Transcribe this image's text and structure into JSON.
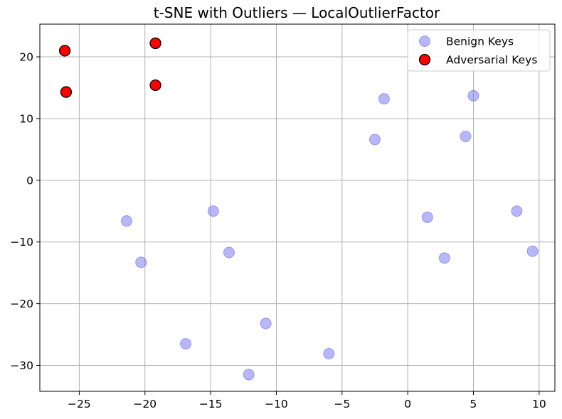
{
  "chart_data": {
    "type": "scatter",
    "title": "t-SNE with Outliers — LocalOutlierFactor",
    "xlabel": "",
    "ylabel": "",
    "xlim": [
      -28,
      11.2
    ],
    "ylim": [
      -34.2,
      25.3
    ],
    "xticks": [
      -25,
      -20,
      -15,
      -10,
      -5,
      0,
      5,
      10
    ],
    "yticks": [
      -30,
      -20,
      -10,
      0,
      10,
      20
    ],
    "grid": true,
    "legend_position": "top-right",
    "series": [
      {
        "name": "Benign Keys",
        "color": "#7b7bf5",
        "points": [
          [
            -1.8,
            13.2
          ],
          [
            5.0,
            13.7
          ],
          [
            -2.5,
            6.6
          ],
          [
            4.4,
            7.1
          ],
          [
            -21.4,
            -6.6
          ],
          [
            -14.8,
            -5.0
          ],
          [
            1.5,
            -6.0
          ],
          [
            8.3,
            -5.0
          ],
          [
            -20.3,
            -13.3
          ],
          [
            -13.6,
            -11.7
          ],
          [
            2.8,
            -12.6
          ],
          [
            9.5,
            -11.5
          ],
          [
            -16.9,
            -26.5
          ],
          [
            -10.8,
            -23.2
          ],
          [
            -12.1,
            -31.5
          ],
          [
            -6.0,
            -28.1
          ]
        ]
      },
      {
        "name": "Adversarial Keys",
        "color": "#ff0000",
        "points": [
          [
            -26.1,
            21.0
          ],
          [
            -19.2,
            22.2
          ],
          [
            -26.0,
            14.3
          ],
          [
            -19.2,
            15.4
          ]
        ]
      }
    ]
  }
}
